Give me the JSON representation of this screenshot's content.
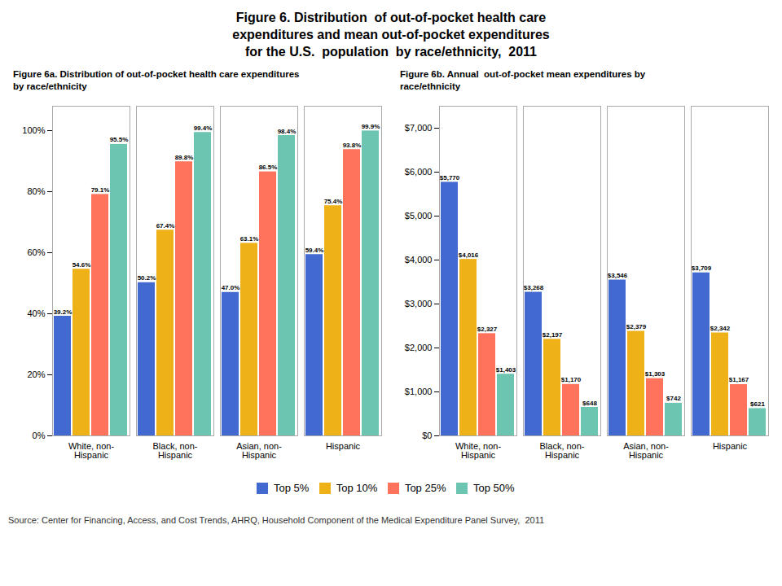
{
  "title": "Figure 6. Distribution  of out-of-pocket health care\nexpenditures and mean out-of-pocket expenditures\nfor the U.S.  population  by race/ethnicity,  2011",
  "annotations": [
    "Source: Center for Financing, Access, and Cost Trends, AHRQ, Household Component of the Medical Expenditure Panel Survey,  2011"
  ],
  "chart_data": [
    {
      "type": "bar",
      "title": "Figure 6a. Distribution of out-of-pocket health care expenditures\nby race/ethnicity",
      "categories": [
        "White, non-\nHispanic",
        "Black, non-\nHispanic",
        "Asian, non-\nHispanic",
        "Hispanic"
      ],
      "series": [
        {
          "name": "Top 5%",
          "values": [
            39.2,
            50.2,
            47.0,
            59.4
          ],
          "value_labels": [
            "39.2%",
            "50.2%",
            "47.0%",
            "59.4%"
          ]
        },
        {
          "name": "Top 10%",
          "values": [
            54.6,
            67.4,
            63.1,
            75.4
          ],
          "value_labels": [
            "54.6%",
            "67.4%",
            "63.1%",
            "75.4%"
          ]
        },
        {
          "name": "Top 25%",
          "values": [
            79.1,
            89.8,
            86.5,
            93.8
          ],
          "value_labels": [
            "79.1%",
            "89.8%",
            "86.5%",
            "93.8%"
          ]
        },
        {
          "name": "Top 50%",
          "values": [
            95.5,
            99.4,
            98.4,
            99.9
          ],
          "value_labels": [
            "95.5%",
            "99.4%",
            "98.4%",
            "99.9%"
          ]
        }
      ],
      "ylim": [
        0,
        108
      ],
      "yticks": [
        {
          "value": 0,
          "label": "0%"
        },
        {
          "value": 20,
          "label": "20%"
        },
        {
          "value": 40,
          "label": "40%"
        },
        {
          "value": 60,
          "label": "60%"
        },
        {
          "value": 80,
          "label": "80%"
        },
        {
          "value": 100,
          "label": "100%"
        }
      ],
      "grid": false,
      "data_labels": true,
      "legend": "bottom"
    },
    {
      "type": "bar",
      "title": "Figure 6b. Annual  out-of-pocket mean expenditures by\nrace/ethnicity",
      "categories": [
        "White, non-\nHispanic",
        "Black, non-\nHispanic",
        "Asian, non-\nHispanic",
        "Hispanic"
      ],
      "series": [
        {
          "name": "Top 5%",
          "values": [
            5770,
            3268,
            3546,
            3709
          ],
          "value_labels": [
            "$5,770",
            "$3,268",
            "$3,546",
            "$3,709"
          ]
        },
        {
          "name": "Top 10%",
          "values": [
            4016,
            2197,
            2379,
            2342
          ],
          "value_labels": [
            "$4,016",
            "$2,197",
            "$2,379",
            "$2,342"
          ]
        },
        {
          "name": "Top 25%",
          "values": [
            2327,
            1170,
            1303,
            1167
          ],
          "value_labels": [
            "$2,327",
            "$1,170",
            "$1,303",
            "$1,167"
          ]
        },
        {
          "name": "Top 50%",
          "values": [
            1403,
            648,
            742,
            621
          ],
          "value_labels": [
            "$1,403",
            "$648",
            "$742",
            "$621"
          ]
        }
      ],
      "ylim": [
        0,
        7500
      ],
      "yticks": [
        {
          "value": 0,
          "label": "$0"
        },
        {
          "value": 1000,
          "label": "$1,000"
        },
        {
          "value": 2000,
          "label": "$2,000"
        },
        {
          "value": 3000,
          "label": "$3,000"
        },
        {
          "value": 4000,
          "label": "$4,000"
        },
        {
          "value": 5000,
          "label": "$5,000"
        },
        {
          "value": 6000,
          "label": "$6,000"
        },
        {
          "value": 7000,
          "label": "$7,000"
        }
      ],
      "grid": false,
      "data_labels": true,
      "legend": "bottom"
    }
  ]
}
